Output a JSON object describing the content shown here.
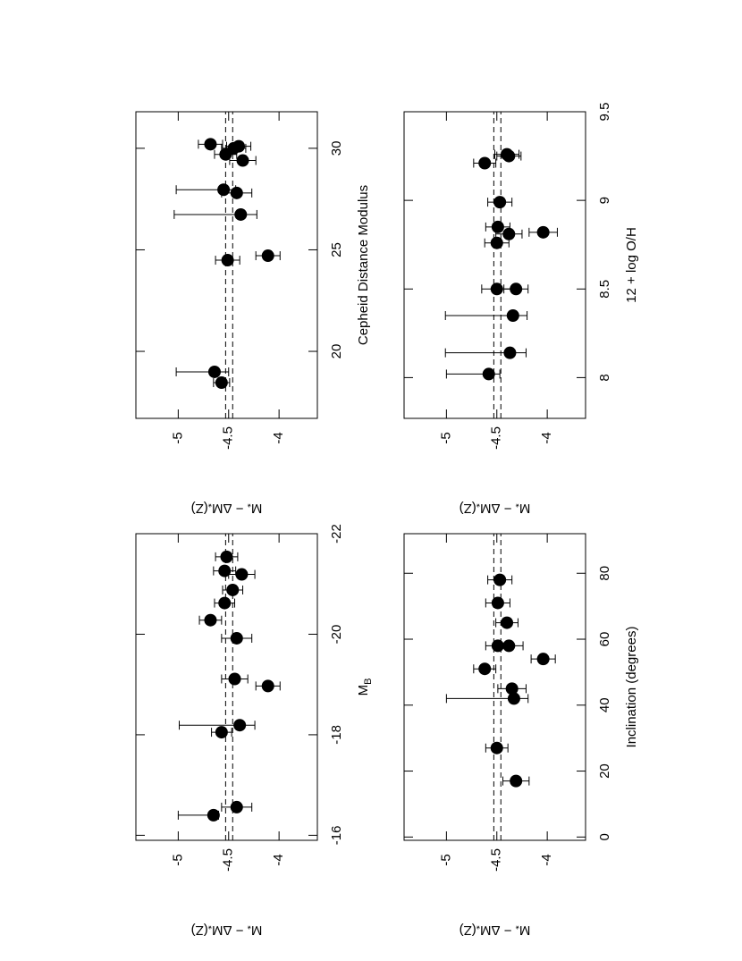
{
  "chart_data": [
    {
      "type": "scatter",
      "color": "#000000",
      "xlabel": [
        "M",
        "B"
      ],
      "ylabel": [
        "M",
        "*",
        " − ΔM",
        "*",
        "(Z)"
      ],
      "xlim": [
        -15.9,
        -22.0
      ],
      "ylim": [
        -5.42,
        -3.62
      ],
      "xticks": [
        -16,
        -18,
        -20,
        -22
      ],
      "yticks": [
        -5,
        -4.5,
        -4
      ],
      "ref_lines": [
        -4.53,
        -4.46
      ],
      "x": [
        -16.4,
        -16.56,
        -18.05,
        -18.19,
        -18.97,
        -19.11,
        -19.92,
        -20.28,
        -20.62,
        -20.88,
        -21.26,
        -21.19,
        -21.54
      ],
      "y": [
        -4.65,
        -4.42,
        -4.57,
        -4.39,
        -4.11,
        -4.44,
        -4.42,
        -4.68,
        -4.54,
        -4.46,
        -4.54,
        -4.37,
        -4.52
      ],
      "err_minus": [
        0.35,
        0.15,
        0.1,
        0.6,
        0.12,
        0.13,
        0.15,
        0.11,
        0.1,
        0.1,
        0.11,
        0.13,
        0.11
      ],
      "err_plus": [
        0.05,
        0.15,
        0.1,
        0.15,
        0.12,
        0.13,
        0.15,
        0.11,
        0.1,
        0.1,
        0.11,
        0.13,
        0.11
      ]
    },
    {
      "type": "scatter",
      "color": "#000000",
      "xlabel": [
        "Cepheid Distance Modulus"
      ],
      "ylabel": [
        "M",
        "*",
        " − ΔM",
        "*",
        "(Z)"
      ],
      "xlim": [
        16.7,
        31.8
      ],
      "ylim": [
        -5.42,
        -3.62
      ],
      "xticks": [
        20,
        25,
        30
      ],
      "yticks": [
        -5,
        -4.5,
        -4
      ],
      "ref_lines": [
        -4.53,
        -4.46
      ],
      "x": [
        18.46,
        18.99,
        24.49,
        24.71,
        26.74,
        27.8,
        27.96,
        29.4,
        29.7,
        30.1,
        30.0,
        30.2
      ],
      "y": [
        -4.57,
        -4.64,
        -4.51,
        -4.11,
        -4.38,
        -4.42,
        -4.55,
        -4.36,
        -4.53,
        -4.4,
        -4.45,
        -4.68
      ],
      "err_minus": [
        0.08,
        0.38,
        0.12,
        0.12,
        0.66,
        0.15,
        0.47,
        0.13,
        0.11,
        0.12,
        0.12,
        0.12
      ],
      "err_plus": [
        0.08,
        0.14,
        0.12,
        0.12,
        0.16,
        0.15,
        0.12,
        0.13,
        0.11,
        0.12,
        0.12,
        0.12
      ]
    },
    {
      "type": "scatter",
      "color": "#000000",
      "xlabel": [
        "Inclination  (degrees)"
      ],
      "ylabel": [
        "M",
        "*",
        " − ΔM",
        "*",
        "(Z)"
      ],
      "xlim": [
        -1,
        92
      ],
      "ylim": [
        -5.42,
        -3.62
      ],
      "xticks": [
        0,
        20,
        40,
        60,
        80
      ],
      "yticks": [
        -5,
        -4.5,
        -4
      ],
      "ref_lines": [
        -4.53,
        -4.46
      ],
      "x": [
        17,
        27,
        42,
        45,
        51,
        54,
        58,
        58,
        65,
        71,
        78
      ],
      "y": [
        -4.31,
        -4.5,
        -4.33,
        -4.35,
        -4.62,
        -4.04,
        -4.38,
        -4.49,
        -4.4,
        -4.49,
        -4.47
      ],
      "err_minus": [
        0.13,
        0.11,
        0.67,
        0.14,
        0.11,
        0.12,
        0.14,
        0.12,
        0.11,
        0.12,
        0.12
      ],
      "err_plus": [
        0.13,
        0.11,
        0.14,
        0.14,
        0.11,
        0.12,
        0.14,
        0.12,
        0.11,
        0.12,
        0.12
      ]
    },
    {
      "type": "scatter",
      "color": "#000000",
      "xlabel": [
        "12 + log O/H"
      ],
      "ylabel": [
        "M",
        "*",
        " − ΔM",
        "*",
        "(Z)"
      ],
      "xlim": [
        7.77,
        9.5
      ],
      "ylim": [
        -5.42,
        -3.62
      ],
      "xticks": [
        8,
        8.5,
        9,
        9.5
      ],
      "yticks": [
        -5,
        -4.5,
        -4
      ],
      "ref_lines": [
        -4.53,
        -4.46
      ],
      "x": [
        8.02,
        8.14,
        8.35,
        8.5,
        8.5,
        8.76,
        8.81,
        8.82,
        8.85,
        8.99,
        9.21,
        9.25,
        9.26
      ],
      "y": [
        -4.58,
        -4.37,
        -4.34,
        -4.31,
        -4.5,
        -4.5,
        -4.38,
        -4.04,
        -4.49,
        -4.47,
        -4.62,
        -4.38,
        -4.4
      ],
      "err_minus": [
        0.42,
        0.64,
        0.67,
        0.12,
        0.15,
        0.12,
        0.13,
        0.14,
        0.12,
        0.12,
        0.11,
        0.12,
        0.12
      ],
      "err_plus": [
        0.11,
        0.16,
        0.14,
        0.12,
        0.15,
        0.12,
        0.13,
        0.14,
        0.12,
        0.12,
        0.11,
        0.12,
        0.12
      ]
    }
  ]
}
